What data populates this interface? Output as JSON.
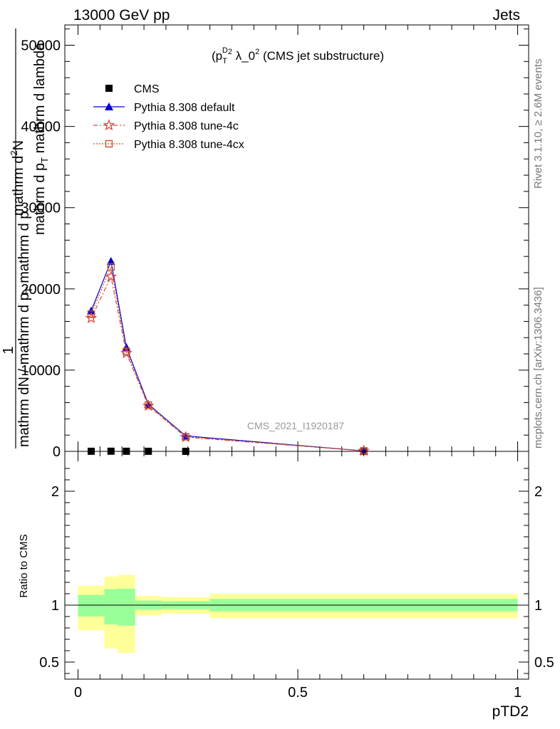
{
  "header": {
    "left": "13000 GeV pp",
    "right": "Jets"
  },
  "side": {
    "rivet": "Rivet 3.1.10, ≥ 2.6M events",
    "mcplots": "mcplots.cern.ch [arXiv:1306.3436]"
  },
  "chart_data": [
    {
      "type": "line",
      "title_parts": {
        "base": "(p",
        "sub": "T",
        "sup": "D",
        "power": "2",
        "mid": " λ_0",
        "power2": "2",
        "tail": " (CMS jet substructure)"
      },
      "ylabel_parts": {
        "one": "1",
        "frac1_num": "mathrm d",
        "frac1_num_sup": "2",
        "frac1_num_tail": "N",
        "frac1_den": "mathrm d p",
        "frac1_den_sub": "T",
        "frac1_den_tail": " mathrm d lambda",
        "frac2_num": "mathrm dN / mathrm d p",
        "frac2_num_sub": "T",
        "frac2_num_tail": " mathrm d p"
      },
      "watermark": "CMS_2021_I1920187",
      "ylim": [
        0,
        52500
      ],
      "xlim": [
        -0.03,
        1.025
      ],
      "y_ticks": [
        0,
        10000,
        20000,
        30000,
        40000,
        50000
      ],
      "y_tick_labels": [
        "0",
        "10000",
        "20000",
        "30000",
        "40000",
        "50000"
      ],
      "legend": {
        "position": "top-left",
        "entries": [
          {
            "label": "CMS",
            "color": "#000000",
            "marker": "square",
            "dash": ""
          },
          {
            "label": "Pythia 8.308 default",
            "color": "#0000cc",
            "marker": "triangle",
            "dash": ""
          },
          {
            "label": "Pythia 8.308 tune-4c",
            "color": "#dd4444",
            "marker": "star",
            "dash": "6,3,2,3"
          },
          {
            "label": "Pythia 8.308 tune-4cx",
            "color": "#cc5522",
            "marker": "open-square",
            "dash": "2,2"
          }
        ]
      },
      "x": [
        0.03,
        0.075,
        0.11,
        0.16,
        0.245,
        0.65
      ],
      "series": [
        {
          "name": "CMS",
          "color": "#000000",
          "marker": "square",
          "dash": "",
          "line": false,
          "values": [
            12,
            18,
            14,
            9,
            5,
            0.5
          ]
        },
        {
          "name": "Pythia 8.308 default",
          "color": "#0000cc",
          "marker": "triangle",
          "dash": "",
          "line": true,
          "values": [
            17300,
            23400,
            12800,
            5800,
            1900,
            60
          ]
        },
        {
          "name": "Pythia 8.308 tune-4c",
          "color": "#dd4444",
          "marker": "star",
          "dash": "6,3,2,3",
          "line": true,
          "values": [
            16400,
            21500,
            12100,
            5600,
            1750,
            55
          ]
        },
        {
          "name": "Pythia 8.308 tune-4cx",
          "color": "#cc5522",
          "marker": "open-square",
          "dash": "2,2",
          "line": true,
          "values": [
            16900,
            22700,
            12300,
            5700,
            1800,
            58
          ]
        }
      ]
    },
    {
      "type": "area",
      "ylabel": "Ratio to CMS",
      "xlabel": "pTD2",
      "ylim": [
        0.35,
        2.35
      ],
      "xlim": [
        -0.03,
        1.025
      ],
      "x_ticks": [
        0,
        0.5,
        1
      ],
      "x_tick_labels": [
        "0",
        "0.5",
        "1"
      ],
      "y_ticks": [
        0.5,
        1,
        2
      ],
      "y_tick_labels": [
        "0.5",
        "1",
        "2"
      ],
      "reference_line": 1,
      "bins": [
        {
          "lo": 0.0,
          "hi": 0.06,
          "stat_lo": 0.9,
          "stat_hi": 1.09,
          "tot_lo": 0.78,
          "tot_hi": 1.17
        },
        {
          "lo": 0.06,
          "hi": 0.09,
          "stat_lo": 0.83,
          "stat_hi": 1.14,
          "tot_lo": 0.62,
          "tot_hi": 1.25
        },
        {
          "lo": 0.09,
          "hi": 0.13,
          "stat_lo": 0.82,
          "stat_hi": 1.145,
          "tot_lo": 0.58,
          "tot_hi": 1.265
        },
        {
          "lo": 0.13,
          "hi": 0.19,
          "stat_lo": 0.96,
          "stat_hi": 1.04,
          "tot_lo": 0.91,
          "tot_hi": 1.08
        },
        {
          "lo": 0.19,
          "hi": 0.3,
          "stat_lo": 0.965,
          "stat_hi": 1.035,
          "tot_lo": 0.925,
          "tot_hi": 1.07
        },
        {
          "lo": 0.3,
          "hi": 1.0,
          "stat_lo": 0.945,
          "stat_hi": 1.055,
          "tot_lo": 0.885,
          "tot_hi": 1.1
        }
      ]
    }
  ]
}
